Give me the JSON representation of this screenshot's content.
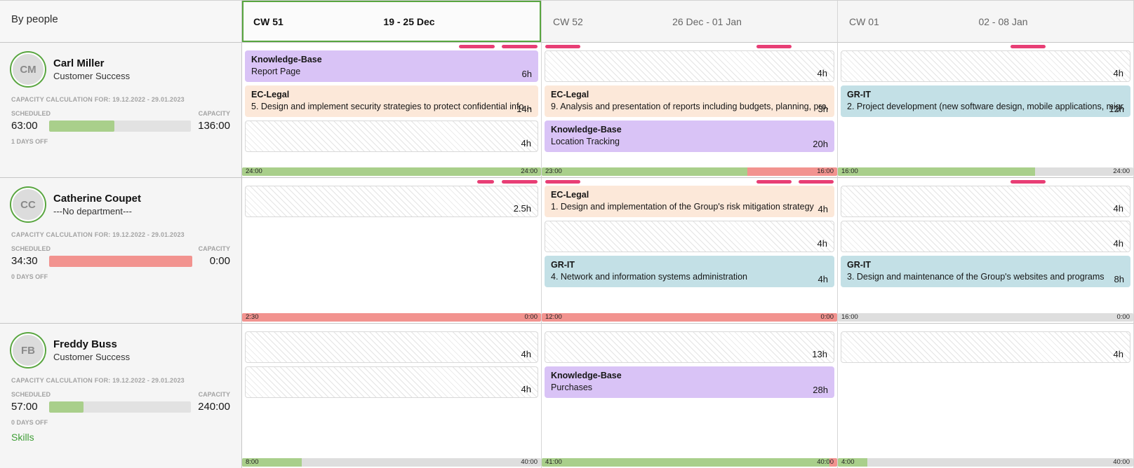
{
  "panel": {
    "title": "By people"
  },
  "palette": {
    "green": "#a9cf8b",
    "red": "#f2938f",
    "gray": "#dedede",
    "purple": "#d9c3f6",
    "peach": "#fce8d9",
    "blue": "#c3e0e6",
    "pink_indicator": "#e83e75",
    "current_week_border": "#58a53f",
    "skills_link_green": "#3f9e36"
  },
  "weeks": [
    {
      "cw": "CW 51",
      "range": "19 - 25 Dec",
      "current": true
    },
    {
      "cw": "CW 52",
      "range": "26 Dec - 01 Jan",
      "current": false
    },
    {
      "cw": "CW 01",
      "range": "02 - 08 Jan",
      "current": false
    }
  ],
  "people": [
    {
      "name": "Carl Miller",
      "department": "Customer Success",
      "initials": "CM",
      "capacity_note": "CAPACITY CALCULATION FOR: 19.12.2022 - 29.01.2023",
      "labels": {
        "scheduled": "SCHEDULED",
        "capacity": "CAPACITY"
      },
      "scheduled": "63:00",
      "capacity": "136:00",
      "progress": {
        "pct": 46,
        "color": "green"
      },
      "days_off": "1 DAYS OFF",
      "skills": null,
      "cells": [
        {
          "dashes": [
            {
              "day": 6
            },
            {
              "day": 7
            }
          ],
          "blocks": [
            {
              "kind": "task",
              "category": "Knowledge-Base",
              "title": "Report Page",
              "hours": "6h",
              "color": "purple"
            },
            {
              "kind": "task",
              "category": "EC-Legal",
              "title": "5. Design and implement security strategies to protect confidential info...",
              "hours": "14h",
              "color": "peach"
            },
            {
              "kind": "empty",
              "hours": "4h"
            }
          ],
          "bar": {
            "left": "24:00",
            "right": "24:00",
            "segments": [
              {
                "color": "green",
                "pct": 100
              }
            ]
          }
        },
        {
          "dashes": [
            {
              "day": 1
            },
            {
              "day": 6
            }
          ],
          "blocks": [
            {
              "kind": "empty",
              "hours": "4h"
            },
            {
              "kind": "task",
              "category": "EC-Legal",
              "title": "9. Analysis and presentation of reports including budgets, planning, pro...",
              "hours": "3h",
              "color": "peach"
            },
            {
              "kind": "task",
              "category": "Knowledge-Base",
              "title": "Location Tracking",
              "hours": "20h",
              "color": "purple"
            }
          ],
          "bar": {
            "left": "23:00",
            "right": "16:00",
            "segments": [
              {
                "color": "green",
                "pct": 69.6
              },
              {
                "color": "red",
                "pct": 30.4
              }
            ]
          }
        },
        {
          "dashes": [
            {
              "day": 5
            }
          ],
          "blocks": [
            {
              "kind": "empty",
              "hours": "4h"
            },
            {
              "kind": "task",
              "category": "GR-IT",
              "title": "2. Project development (new software design, mobile applications, migr...",
              "hours": "12h",
              "color": "blue"
            }
          ],
          "bar": {
            "left": "16:00",
            "right": "24:00",
            "segments": [
              {
                "color": "green",
                "pct": 66.7
              }
            ]
          }
        }
      ]
    },
    {
      "name": "Catherine Coupet",
      "department": "---No department---",
      "initials": "CC",
      "capacity_note": "CAPACITY CALCULATION FOR: 19.12.2022 - 29.01.2023",
      "labels": {
        "scheduled": "SCHEDULED",
        "capacity": "CAPACITY"
      },
      "scheduled": "34:30",
      "capacity": "0:00",
      "progress": {
        "pct": 100,
        "color": "red"
      },
      "days_off": "0 DAYS OFF",
      "skills": null,
      "cells": [
        {
          "dashes": [
            {
              "day": 6,
              "half": true
            },
            {
              "day": 7
            }
          ],
          "blocks": [
            {
              "kind": "empty",
              "hours": "2.5h"
            }
          ],
          "bar": {
            "left": "2:30",
            "right": "0:00",
            "segments": [
              {
                "color": "red",
                "pct": 100
              }
            ]
          }
        },
        {
          "dashes": [
            {
              "day": 1
            },
            {
              "day": 6
            },
            {
              "day": 7
            }
          ],
          "blocks": [
            {
              "kind": "task",
              "category": "EC-Legal",
              "title": "1. Design and implementation of the Group's risk mitigation strategy",
              "hours": "4h",
              "color": "peach"
            },
            {
              "kind": "empty",
              "hours": "4h"
            },
            {
              "kind": "task",
              "category": "GR-IT",
              "title": "4. Network and information systems administration",
              "hours": "4h",
              "color": "blue"
            }
          ],
          "bar": {
            "left": "12:00",
            "right": "0:00",
            "segments": [
              {
                "color": "red",
                "pct": 100
              }
            ]
          }
        },
        {
          "dashes": [
            {
              "day": 5
            }
          ],
          "blocks": [
            {
              "kind": "empty",
              "hours": "4h"
            },
            {
              "kind": "empty",
              "hours": "4h"
            },
            {
              "kind": "task",
              "category": "GR-IT",
              "title": "3. Design and maintenance of the Group's websites and programs",
              "hours": "8h",
              "color": "blue"
            }
          ],
          "bar": {
            "left": "16:00",
            "right": "0:00",
            "segments": []
          }
        }
      ]
    },
    {
      "name": "Freddy Buss",
      "department": "Customer Success",
      "initials": "FB",
      "capacity_note": "CAPACITY CALCULATION FOR: 19.12.2022 - 29.01.2023",
      "labels": {
        "scheduled": "SCHEDULED",
        "capacity": "CAPACITY"
      },
      "scheduled": "57:00",
      "capacity": "240:00",
      "progress": {
        "pct": 24,
        "color": "green"
      },
      "days_off": "0 DAYS OFF",
      "skills": "Skills",
      "cells": [
        {
          "dashes": [],
          "blocks": [
            {
              "kind": "empty",
              "hours": "4h"
            },
            {
              "kind": "empty",
              "hours": "4h"
            }
          ],
          "bar": {
            "left": "8:00",
            "right": "40:00",
            "segments": [
              {
                "color": "green",
                "pct": 20
              }
            ]
          }
        },
        {
          "dashes": [],
          "blocks": [
            {
              "kind": "empty",
              "hours": "13h"
            },
            {
              "kind": "task",
              "category": "Knowledge-Base",
              "title": "Purchases",
              "hours": "28h",
              "color": "purple"
            }
          ],
          "bar": {
            "left": "41:00",
            "right": "40:00",
            "segments": [
              {
                "color": "green",
                "pct": 97.5
              },
              {
                "color": "red",
                "pct": 2.5
              }
            ]
          }
        },
        {
          "dashes": [],
          "blocks": [
            {
              "kind": "empty",
              "hours": "4h"
            }
          ],
          "bar": {
            "left": "4:00",
            "right": "40:00",
            "segments": [
              {
                "color": "green",
                "pct": 10
              }
            ]
          }
        }
      ]
    }
  ]
}
